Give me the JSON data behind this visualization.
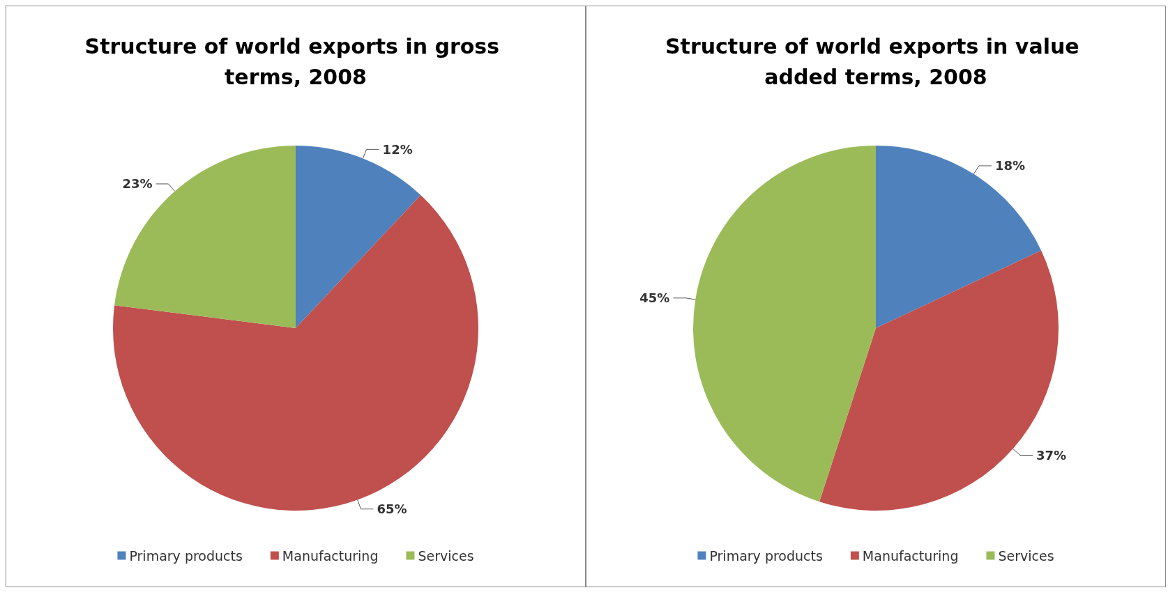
{
  "chart_data": [
    {
      "type": "pie",
      "title": "Structure of world exports in gross terms, 2008",
      "categories": [
        "Primary products",
        "Manufacturing",
        "Services"
      ],
      "values": [
        12,
        65,
        23
      ],
      "value_labels": [
        "12%",
        "65%",
        "23%"
      ],
      "colors": [
        "#4f81bd",
        "#c0504d",
        "#9bbb59"
      ],
      "legend": "bottom"
    },
    {
      "type": "pie",
      "title": "Structure of world exports in value added terms, 2008",
      "categories": [
        "Primary products",
        "Manufacturing",
        "Services"
      ],
      "values": [
        18,
        37,
        45
      ],
      "value_labels": [
        "18%",
        "37%",
        "45%"
      ],
      "colors": [
        "#4f81bd",
        "#c0504d",
        "#9bbb59"
      ],
      "legend": "bottom"
    }
  ]
}
